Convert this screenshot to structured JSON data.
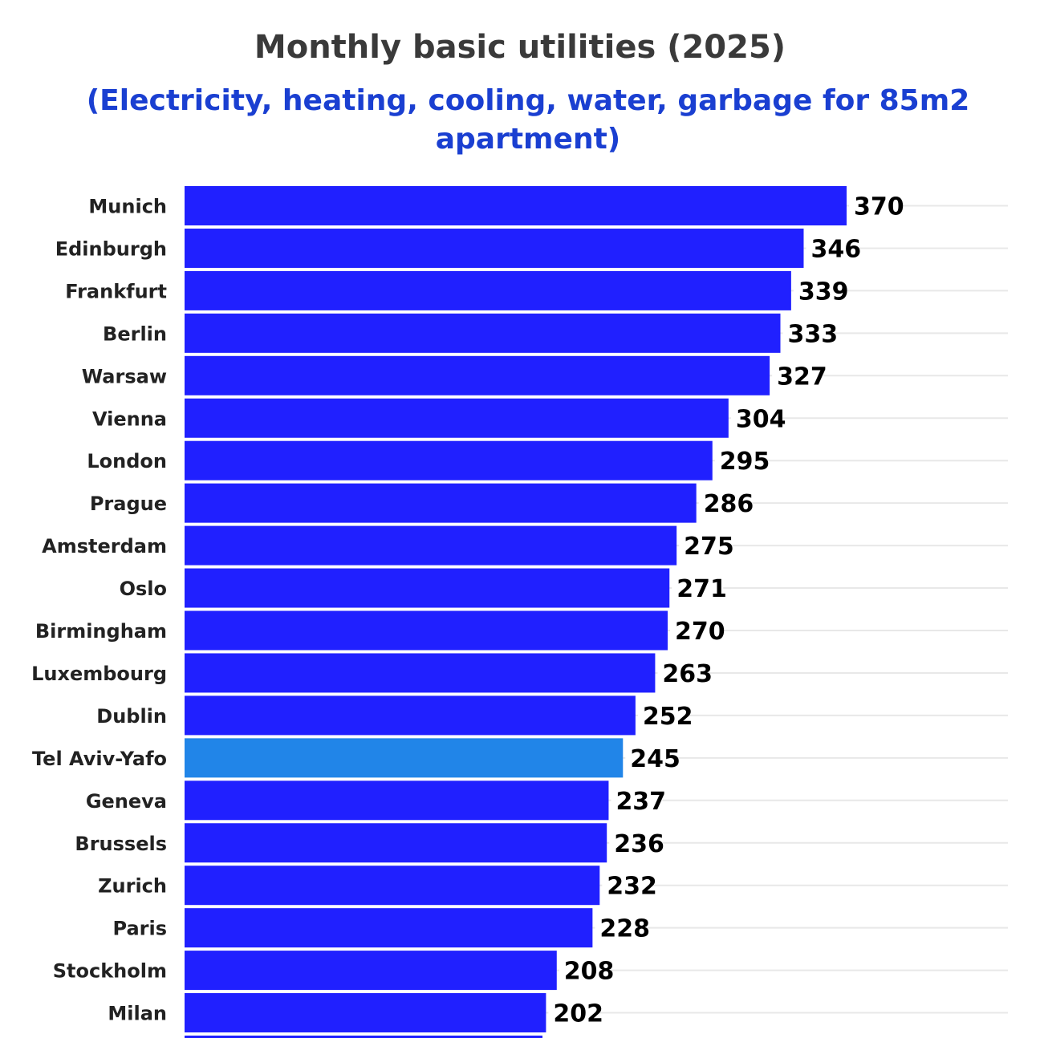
{
  "title": "Monthly basic utilities (2025)",
  "subtitle": "(Electricity, heating, cooling, water, garbage for 85m2 apartment)",
  "chart_data": {
    "type": "bar",
    "orientation": "horizontal",
    "title": "Monthly basic utilities (2025)",
    "subtitle": "(Electricity, heating, cooling, water, garbage for 85m2 apartment)",
    "categories": [
      "Munich",
      "Edinburgh",
      "Frankfurt",
      "Berlin",
      "Warsaw",
      "Vienna",
      "London",
      "Prague",
      "Amsterdam",
      "Oslo",
      "Birmingham",
      "Luxembourg",
      "Dublin",
      "Tel Aviv-Yafo",
      "Geneva",
      "Brussels",
      "Zurich",
      "Paris",
      "Stockholm",
      "Milan"
    ],
    "values": [
      370,
      346,
      339,
      333,
      327,
      304,
      295,
      286,
      275,
      271,
      270,
      263,
      252,
      245,
      237,
      236,
      232,
      228,
      208,
      202
    ],
    "highlight": "Tel Aviv-Yafo",
    "colors": {
      "bar": "#2020ff",
      "highlight": "#2185e8",
      "grid": "#e8e8e8"
    },
    "xlim": [
      0,
      460
    ],
    "grid": true,
    "legend": "none"
  }
}
